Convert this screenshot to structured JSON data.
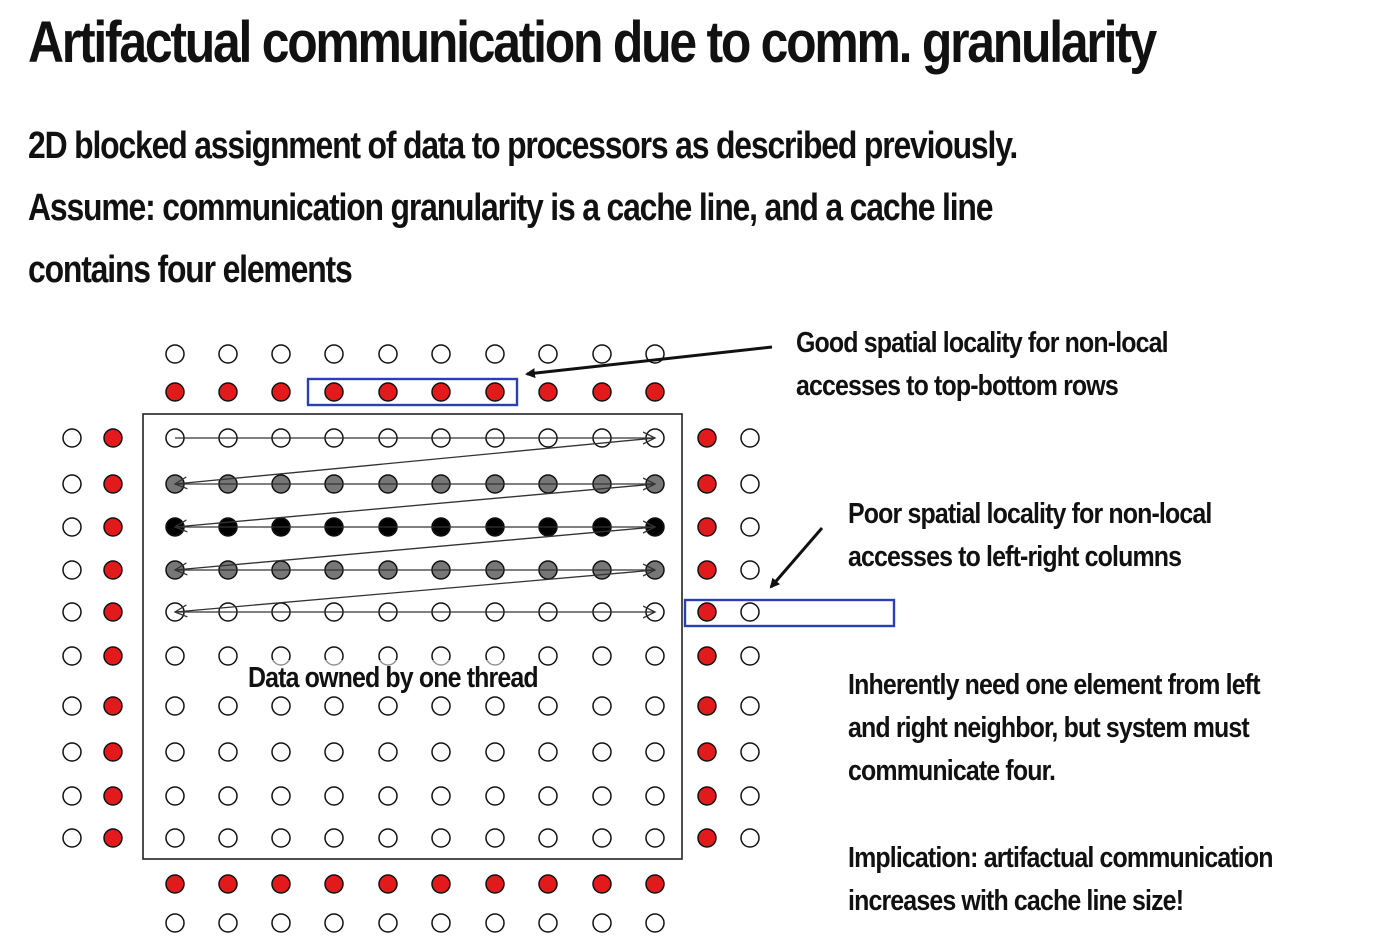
{
  "title": "Artifactual communication due to comm. granularity",
  "intro": {
    "line1": "2D blocked assignment of data to processors as described previously.",
    "line2": "Assume: communication granularity is a cache line, and a cache line",
    "line3": "contains four elements"
  },
  "notes": {
    "good": {
      "line1": "Good spatial locality for non-local",
      "line2": "accesses to top-bottom rows"
    },
    "poor": {
      "line1": "Poor spatial locality for non-local",
      "line2": "accesses to left-right columns"
    },
    "inherent": {
      "line1": "Inherently need one element from left",
      "line2": "and right neighbor, but system must",
      "line3": "communicate four."
    },
    "implication": {
      "line1": "Implication: artifactual communication",
      "line2": "increases with cache line size!"
    }
  },
  "block_label": "Data owned by one thread",
  "colors": {
    "ghost_fill": "#e31a1c",
    "highlight_box": "#2b3fb4",
    "owned_dark": "#000000",
    "owned_gray": "#777777"
  },
  "grid": {
    "columns": 10,
    "rows": 10,
    "row_fill_pattern": [
      "white",
      "gray",
      "black",
      "gray",
      "white",
      "white",
      "white",
      "white",
      "white",
      "white"
    ],
    "scanned_rows": 5,
    "top_ghost_highlight": {
      "start_col": 3,
      "count": 4
    },
    "right_ghost_highlight_row": 4
  }
}
